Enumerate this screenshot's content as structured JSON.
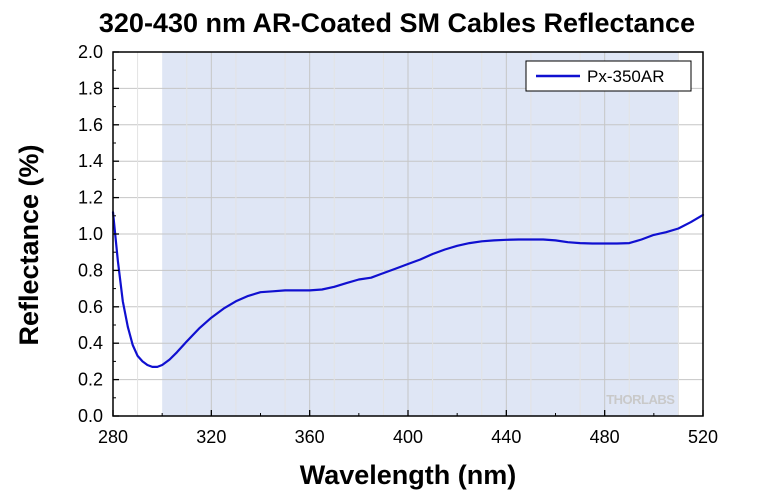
{
  "chart_data": {
    "type": "line",
    "title": "320-430 nm AR-Coated SM Cables Reflectance",
    "xlabel": "Wavelength (nm)",
    "ylabel": "Reflectance (%)",
    "xlim": [
      280,
      520
    ],
    "ylim": [
      0.0,
      2.0
    ],
    "x_ticks": [
      280,
      320,
      360,
      400,
      440,
      480,
      520
    ],
    "y_ticks": [
      0.0,
      0.2,
      0.4,
      0.6,
      0.8,
      1.0,
      1.2,
      1.4,
      1.6,
      1.8,
      2.0
    ],
    "x_tick_labels": [
      "280",
      "320",
      "360",
      "400",
      "440",
      "480",
      "520"
    ],
    "y_tick_labels": [
      "0.0",
      "0.2",
      "0.4",
      "0.6",
      "0.8",
      "1.0",
      "1.2",
      "1.4",
      "1.6",
      "1.8",
      "2.0"
    ],
    "grid": true,
    "legend_position": "top-right",
    "shaded_band": {
      "x_start": 300,
      "x_end": 510,
      "color": "#dfe6f5"
    },
    "watermark": "THORLABS",
    "series": [
      {
        "name": "Px-350AR",
        "color": "#1010d0",
        "x": [
          280,
          282,
          284,
          286,
          288,
          290,
          292,
          294,
          296,
          298,
          300,
          303,
          306,
          310,
          315,
          320,
          325,
          330,
          335,
          340,
          345,
          350,
          355,
          360,
          365,
          370,
          375,
          380,
          385,
          390,
          395,
          400,
          405,
          410,
          415,
          420,
          425,
          430,
          435,
          440,
          445,
          450,
          455,
          460,
          465,
          470,
          475,
          480,
          485,
          490,
          495,
          500,
          505,
          510,
          515,
          520
        ],
        "y": [
          1.12,
          0.85,
          0.63,
          0.49,
          0.39,
          0.33,
          0.3,
          0.28,
          0.27,
          0.27,
          0.28,
          0.31,
          0.35,
          0.41,
          0.48,
          0.54,
          0.59,
          0.63,
          0.66,
          0.68,
          0.685,
          0.69,
          0.69,
          0.69,
          0.695,
          0.71,
          0.73,
          0.75,
          0.76,
          0.785,
          0.81,
          0.835,
          0.86,
          0.89,
          0.915,
          0.935,
          0.95,
          0.96,
          0.965,
          0.968,
          0.97,
          0.97,
          0.97,
          0.965,
          0.955,
          0.95,
          0.948,
          0.948,
          0.948,
          0.95,
          0.97,
          0.995,
          1.01,
          1.03,
          1.065,
          1.105
        ]
      }
    ]
  }
}
